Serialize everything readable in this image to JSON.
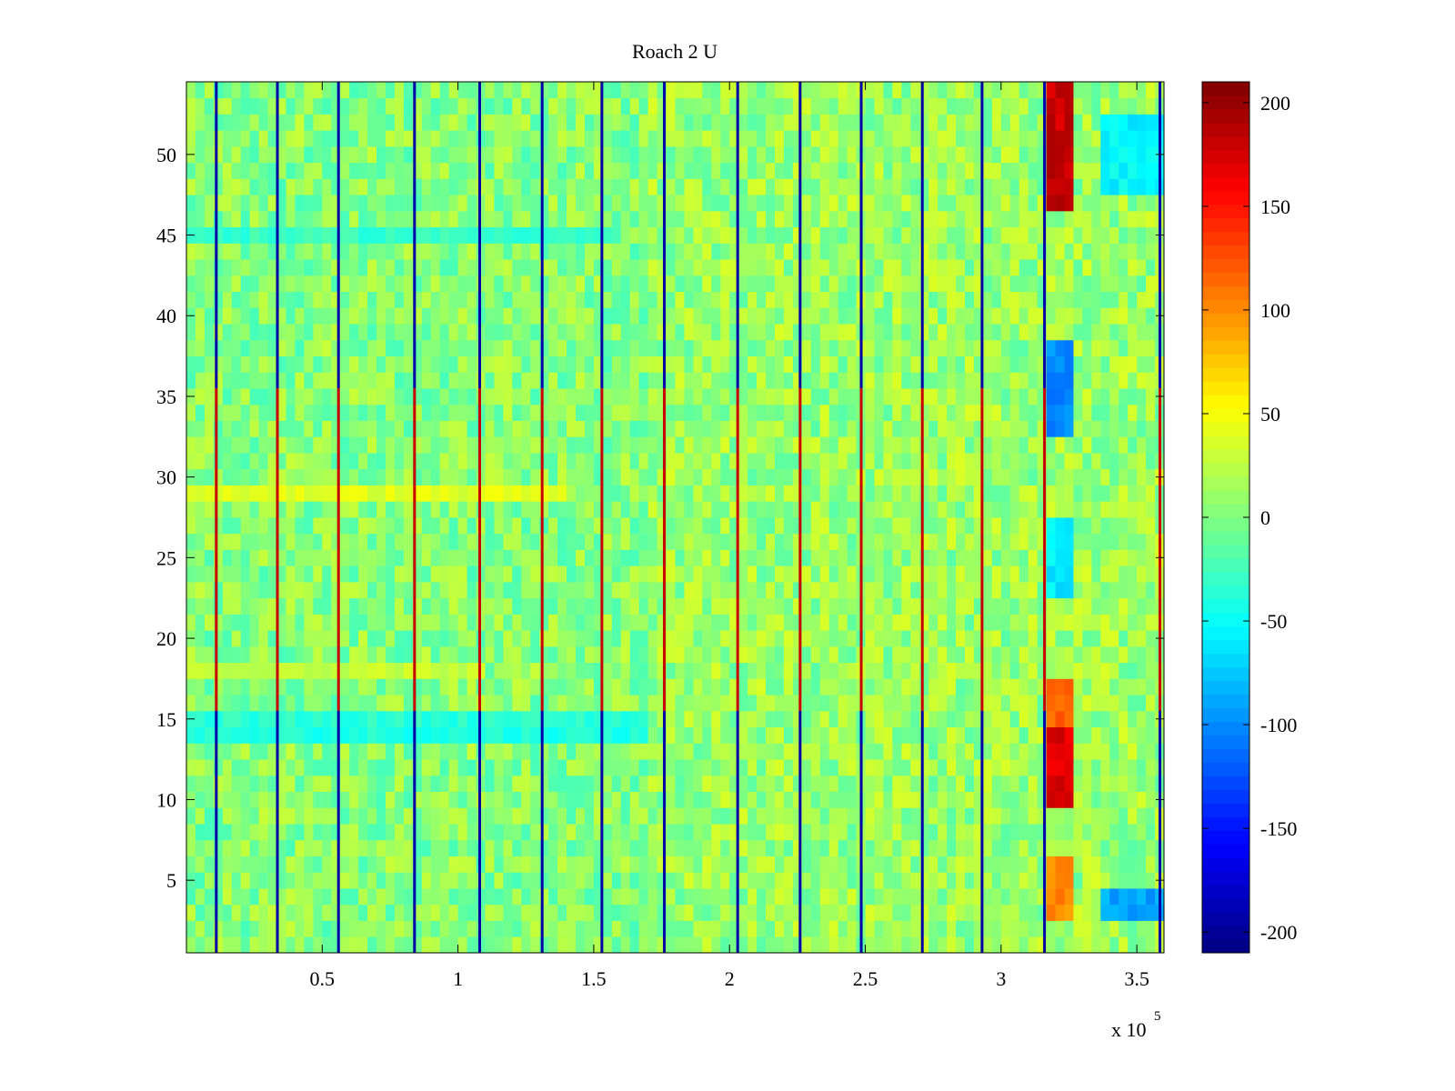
{
  "chart_data": {
    "type": "heatmap",
    "title": "Roach 2 U",
    "xlabel": "",
    "ylabel": "",
    "x_exponent_label": "x 10",
    "x_exponent_power": "5",
    "xlim": [
      0,
      360000
    ],
    "ylim": [
      0.5,
      54.5
    ],
    "x_ticks": [
      {
        "value": 50000,
        "label": "0.5"
      },
      {
        "value": 100000,
        "label": "1"
      },
      {
        "value": 150000,
        "label": "1.5"
      },
      {
        "value": 200000,
        "label": "2"
      },
      {
        "value": 250000,
        "label": "2.5"
      },
      {
        "value": 300000,
        "label": "3"
      },
      {
        "value": 350000,
        "label": "3.5"
      }
    ],
    "y_ticks": [
      {
        "value": 5,
        "label": "5"
      },
      {
        "value": 10,
        "label": "10"
      },
      {
        "value": 15,
        "label": "15"
      },
      {
        "value": 20,
        "label": "20"
      },
      {
        "value": 25,
        "label": "25"
      },
      {
        "value": 30,
        "label": "30"
      },
      {
        "value": 35,
        "label": "35"
      },
      {
        "value": 40,
        "label": "40"
      },
      {
        "value": 45,
        "label": "45"
      },
      {
        "value": 50,
        "label": "50"
      }
    ],
    "rows": 54,
    "colormap": "jet",
    "clim": [
      -210,
      210
    ],
    "colorbar_ticks": [
      {
        "value": 200,
        "label": "200"
      },
      {
        "value": 150,
        "label": "150"
      },
      {
        "value": 100,
        "label": "100"
      },
      {
        "value": 50,
        "label": "50"
      },
      {
        "value": 0,
        "label": "0"
      },
      {
        "value": -50,
        "label": "-50"
      },
      {
        "value": -100,
        "label": "-100"
      },
      {
        "value": -150,
        "label": "-150"
      },
      {
        "value": -200,
        "label": "-200"
      }
    ],
    "segment_boundaries_x": [
      11000,
      33500,
      56000,
      84000,
      108000,
      131000,
      153000,
      176000,
      203000,
      226000,
      248500,
      271000,
      293000,
      316000,
      358500
    ],
    "hotspots": [
      {
        "x_range": [
          318000,
          327000
        ],
        "y_range": [
          47,
          54
        ],
        "value": 180
      },
      {
        "x_range": [
          318000,
          327000
        ],
        "y_range": [
          10,
          14
        ],
        "value": 170
      },
      {
        "x_range": [
          318000,
          327000
        ],
        "y_range": [
          15,
          17
        ],
        "value": 120
      },
      {
        "x_range": [
          318000,
          327000
        ],
        "y_range": [
          3,
          6
        ],
        "value": 100
      },
      {
        "x_range": [
          318000,
          327000
        ],
        "y_range": [
          33,
          38
        ],
        "value": -100
      },
      {
        "x_range": [
          318000,
          327000
        ],
        "y_range": [
          23,
          27
        ],
        "value": -60
      },
      {
        "x_range": [
          338000,
          359000
        ],
        "y_range": [
          3,
          4
        ],
        "value": -90
      },
      {
        "x_range": [
          338000,
          359000
        ],
        "y_range": [
          48,
          52
        ],
        "value": -55
      }
    ],
    "bands": [
      {
        "y": 29,
        "x_range": [
          0,
          140000
        ],
        "value": 40
      },
      {
        "y": 18,
        "x_range": [
          0,
          110000
        ],
        "value": 30
      },
      {
        "y": 14,
        "x_range": [
          0,
          170000
        ],
        "value": -40
      },
      {
        "y": 15,
        "x_range": [
          0,
          170000
        ],
        "value": -35
      },
      {
        "y": 45,
        "x_range": [
          0,
          160000
        ],
        "value": -30
      }
    ]
  },
  "colors": {
    "background": "#ffffff",
    "axis": "#000000"
  }
}
